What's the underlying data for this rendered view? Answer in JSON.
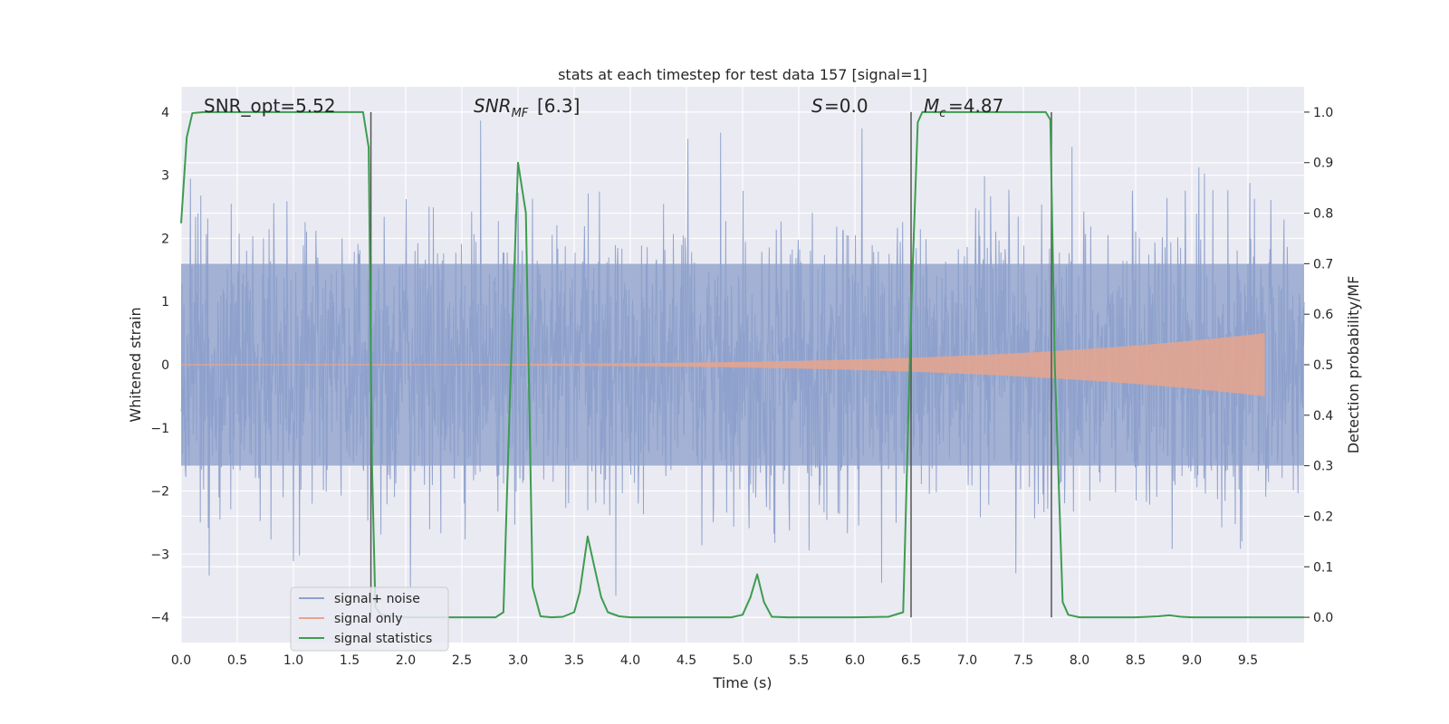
{
  "chart_data": {
    "type": "line",
    "title": "stats at each timestep for test data 157 [signal=1]",
    "xlabel": "Time (s)",
    "ylabel_left": "Whitened strain",
    "ylabel_right": "Detection probability/MF",
    "xlim": [
      0,
      10
    ],
    "ylim_left": [
      -4.4,
      4.4
    ],
    "ylim_right": [
      -0.05,
      1.05
    ],
    "x_ticks": [
      0.0,
      0.5,
      1.0,
      1.5,
      2.0,
      2.5,
      3.0,
      3.5,
      4.0,
      4.5,
      5.0,
      5.5,
      6.0,
      6.5,
      7.0,
      7.5,
      8.0,
      8.5,
      9.0,
      9.5
    ],
    "x_tick_labels": [
      "0.0",
      "0.5",
      "1.0",
      "1.5",
      "2.0",
      "2.5",
      "3.0",
      "3.5",
      "4.0",
      "4.5",
      "5.0",
      "5.5",
      "6.0",
      "6.5",
      "7.0",
      "7.5",
      "8.0",
      "8.5",
      "9.0",
      "9.5"
    ],
    "y_left_ticks": [
      4,
      3,
      2,
      1,
      0,
      -1,
      -2,
      -3,
      -4
    ],
    "y_left_tick_labels": [
      "4",
      "3",
      "2",
      "1",
      "0",
      "−1",
      "−2",
      "−3",
      "−4"
    ],
    "y_right_ticks": [
      1.0,
      0.9,
      0.8,
      0.7,
      0.6,
      0.5,
      0.4,
      0.3,
      0.2,
      0.1,
      0.0
    ],
    "y_right_tick_labels": [
      "1.0",
      "0.9",
      "0.8",
      "0.7",
      "0.6",
      "0.5",
      "0.4",
      "0.3",
      "0.2",
      "0.1",
      "0.0"
    ],
    "grid": true,
    "annotations": {
      "snr_opt": "SNR_opt=5.52",
      "snr_mf": "[6.3]",
      "s_stat": "=0.0",
      "chirp_mass": "=4.87"
    },
    "legend": {
      "placement": "lower-left",
      "entries": [
        {
          "label": "signal+ noise",
          "color": "#8da0cb"
        },
        {
          "label": "signal only",
          "color": "#e8a48c"
        },
        {
          "label": "signal statistics",
          "color": "#3d9c50"
        }
      ]
    },
    "series": [
      {
        "name": "signal statistics",
        "color": "#3d9c50",
        "x": [
          0.0,
          0.05,
          0.1,
          0.2,
          0.5,
          1.0,
          1.5,
          1.62,
          1.67,
          1.7,
          1.73,
          1.78,
          2.0,
          2.5,
          2.8,
          2.87,
          2.93,
          3.0,
          3.07,
          3.13,
          3.2,
          3.3,
          3.4,
          3.5,
          3.55,
          3.62,
          3.68,
          3.74,
          3.8,
          3.9,
          4.0,
          4.5,
          4.9,
          5.0,
          5.07,
          5.13,
          5.19,
          5.26,
          5.4,
          6.0,
          6.3,
          6.43,
          6.5,
          6.56,
          6.6,
          6.7,
          7.0,
          7.5,
          7.7,
          7.74,
          7.78,
          7.85,
          7.9,
          8.0,
          8.5,
          8.7,
          8.8,
          8.9,
          9.0,
          9.5,
          10.0
        ],
        "y": [
          0.78,
          0.95,
          0.998,
          1.0,
          1.0,
          1.0,
          1.0,
          1.0,
          0.93,
          0.3,
          0.02,
          0.005,
          0.0,
          0.0,
          0.0,
          0.01,
          0.45,
          0.9,
          0.8,
          0.06,
          0.002,
          0.0,
          0.001,
          0.01,
          0.05,
          0.16,
          0.1,
          0.04,
          0.01,
          0.002,
          0.0,
          0.0,
          0.0,
          0.005,
          0.04,
          0.085,
          0.03,
          0.001,
          0.0,
          0.0,
          0.001,
          0.01,
          0.6,
          0.98,
          1.0,
          1.0,
          1.0,
          1.0,
          1.0,
          0.985,
          0.5,
          0.03,
          0.005,
          0.0,
          0.0,
          0.002,
          0.004,
          0.001,
          0.0,
          0.0,
          0.0
        ]
      },
      {
        "name": "signal only",
        "color": "#e8a48c",
        "x_start": 0.0,
        "x_end": 9.65,
        "amplitude_start": 0.01,
        "amplitude_end": 0.5
      },
      {
        "name": "signal+ noise",
        "color": "#8da0cb",
        "x_range": [
          0.0,
          10.0
        ],
        "typical_envelope": 1.6,
        "peak_range": [
          -4.0,
          4.0
        ]
      }
    ],
    "vertical_lines_x": [
      1.69,
      6.5,
      7.75
    ]
  }
}
